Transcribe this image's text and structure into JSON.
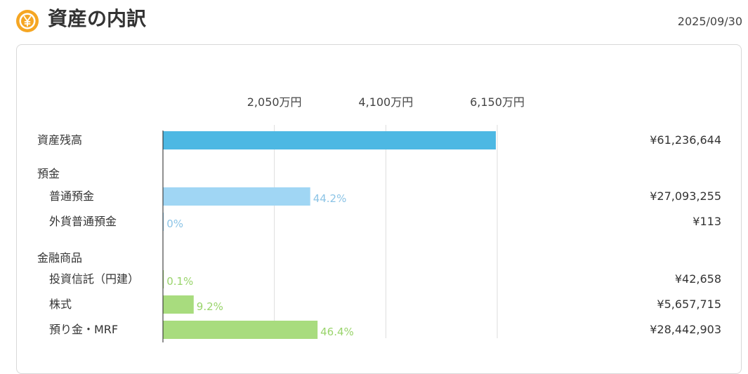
{
  "header": {
    "title": "資産の内訳",
    "date": "2025/09/30",
    "icon": "yen-coin-icon",
    "icon_color": "#f5a623"
  },
  "chart_data": {
    "type": "bar",
    "orientation": "horizontal",
    "x_ticks": [
      {
        "value": 20500000,
        "label": "2,050万円"
      },
      {
        "value": 41000000,
        "label": "4,100万円"
      },
      {
        "value": 61500000,
        "label": "6,150万円"
      }
    ],
    "xlim": [
      0,
      61500000
    ],
    "grid": true,
    "rows": [
      {
        "kind": "bar",
        "label": "資産残高",
        "value": 61236644,
        "display_value": "¥61,236,644",
        "percent": null,
        "color": "#4db8e3"
      },
      {
        "kind": "group",
        "label": "預金"
      },
      {
        "kind": "bar",
        "label": "普通預金",
        "value": 27093255,
        "display_value": "¥27,093,255",
        "percent": "44.2%",
        "color": "#a0d6f4"
      },
      {
        "kind": "bar",
        "label": "外貨普通預金",
        "value": 113,
        "display_value": "¥113",
        "percent": "0%",
        "color": "#a0d6f4"
      },
      {
        "kind": "group",
        "label": "金融商品"
      },
      {
        "kind": "bar",
        "label": "投資信託（円建）",
        "value": 42658,
        "display_value": "¥42,658",
        "percent": "0.1%",
        "color": "#a8dc7e"
      },
      {
        "kind": "bar",
        "label": "株式",
        "value": 5657715,
        "display_value": "¥5,657,715",
        "percent": "9.2%",
        "color": "#a8dc7e"
      },
      {
        "kind": "bar",
        "label": "預り金・MRF",
        "value": 28442903,
        "display_value": "¥28,442,903",
        "percent": "46.4%",
        "color": "#a8dc7e"
      }
    ],
    "percent_colors": {
      "deposit": "#8cc4e6",
      "financial": "#99d46b"
    }
  }
}
